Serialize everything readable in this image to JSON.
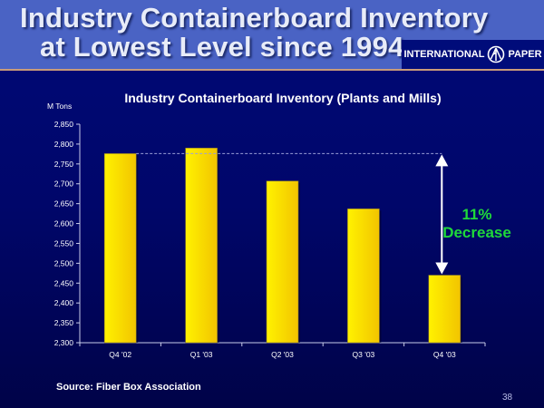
{
  "slide": {
    "title_line1": "Industry Containerboard Inventory",
    "title_line2": "at Lowest Level since 1994",
    "logo_left": "INTERNATIONAL",
    "logo_right": "PAPER",
    "source": "Source: Fiber Box Association",
    "page_number": "38"
  },
  "chart_data": {
    "type": "bar",
    "title": "Industry Containerboard Inventory (Plants and Mills)",
    "ylabel": "M Tons",
    "xlabel": "",
    "categories": [
      "Q4 '02",
      "Q1 '03",
      "Q2 '03",
      "Q3 '03",
      "Q4 '03"
    ],
    "values": [
      2776,
      2790,
      2707,
      2637,
      2470
    ],
    "ylim": [
      2300,
      2850
    ],
    "yticks": [
      2300,
      2350,
      2400,
      2450,
      2500,
      2550,
      2600,
      2650,
      2700,
      2750,
      2800,
      2850
    ],
    "ytick_labels": [
      "2,300",
      "2,350",
      "2,400",
      "2,450",
      "2,500",
      "2,550",
      "2,600",
      "2,650",
      "2,700",
      "2,750",
      "2,800",
      "2,850"
    ],
    "grid": false,
    "legend": "none",
    "bar_color": "#ffe000",
    "annotation": {
      "line1": "11%",
      "line2": "Decrease",
      "color": "#1fd93a",
      "from_category": "Q4 '02",
      "to_category": "Q4 '03"
    }
  }
}
